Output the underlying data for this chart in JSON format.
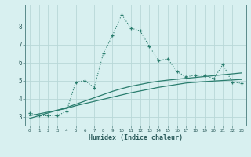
{
  "xlabel": "Humidex (Indice chaleur)",
  "x_values": [
    0,
    1,
    2,
    3,
    4,
    5,
    6,
    7,
    8,
    9,
    10,
    11,
    12,
    13,
    14,
    15,
    16,
    17,
    18,
    19,
    20,
    21,
    22,
    23
  ],
  "y_main": [
    3.2,
    3.05,
    3.05,
    3.05,
    3.3,
    4.9,
    5.0,
    4.6,
    6.5,
    7.5,
    8.65,
    7.9,
    7.75,
    6.9,
    6.1,
    6.2,
    5.5,
    5.2,
    5.3,
    5.3,
    5.1,
    5.9,
    4.9,
    4.85
  ],
  "y_line1": [
    3.05,
    3.15,
    3.25,
    3.35,
    3.45,
    3.6,
    3.72,
    3.84,
    3.96,
    4.08,
    4.2,
    4.32,
    4.42,
    4.52,
    4.62,
    4.7,
    4.78,
    4.86,
    4.9,
    4.94,
    4.97,
    5.0,
    5.03,
    5.06
  ],
  "y_line2": [
    2.9,
    3.05,
    3.2,
    3.35,
    3.5,
    3.68,
    3.86,
    4.04,
    4.22,
    4.4,
    4.55,
    4.68,
    4.78,
    4.88,
    4.96,
    5.02,
    5.07,
    5.12,
    5.17,
    5.22,
    5.27,
    5.32,
    5.37,
    5.42
  ],
  "ylim": [
    2.5,
    9.2
  ],
  "xlim": [
    -0.5,
    23.5
  ],
  "yticks": [
    3,
    4,
    5,
    6,
    7,
    8
  ],
  "line_color": "#2a7d6e",
  "bg_color": "#d8f0f0",
  "grid_color": "#c8e0e0"
}
